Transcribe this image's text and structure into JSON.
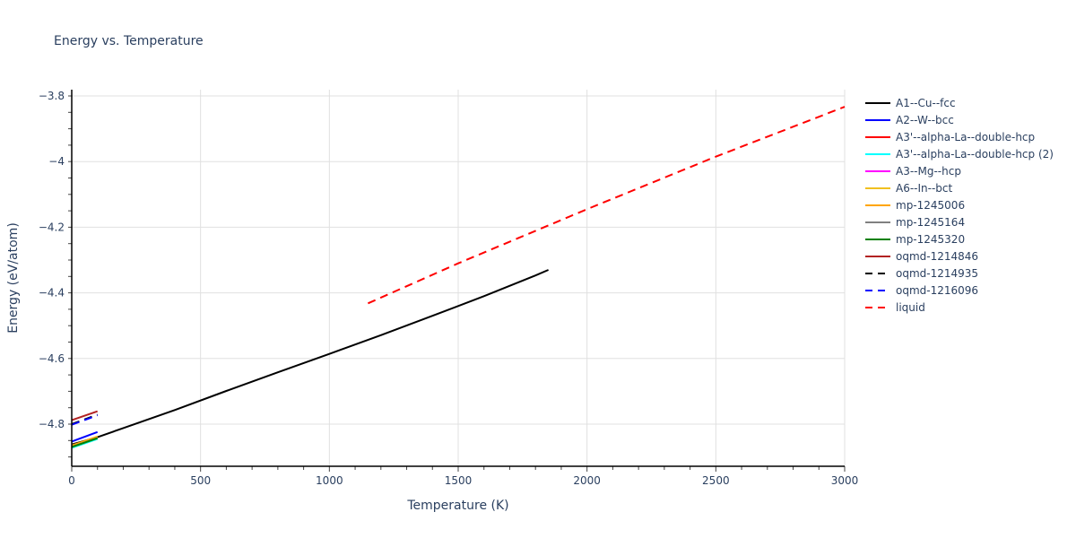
{
  "chart_data": {
    "type": "line",
    "title": "Energy vs. Temperature",
    "xlabel": "Temperature (K)",
    "ylabel": "Energy (eV/atom)",
    "xlim": [
      0,
      3000
    ],
    "ylim": [
      -4.928,
      -3.78
    ],
    "xticks": [
      0,
      500,
      1000,
      1500,
      2000,
      2500,
      3000
    ],
    "yticks": [
      -3.8,
      -4,
      -4.2,
      -4.4,
      -4.6,
      -4.8
    ],
    "ytick_labels": [
      "−3.8",
      "−4",
      "−4.2",
      "−4.4",
      "−4.6",
      "−4.8"
    ],
    "grid": true,
    "legend_position": "right",
    "series": [
      {
        "name": "A1--Cu--fcc",
        "color": "#000000",
        "dash": "solid",
        "x": [
          0,
          100,
          200,
          400,
          600,
          800,
          1000,
          1200,
          1400,
          1600,
          1800,
          1850
        ],
        "y": [
          -4.862,
          -4.84,
          -4.812,
          -4.757,
          -4.699,
          -4.642,
          -4.586,
          -4.529,
          -4.47,
          -4.41,
          -4.347,
          -4.33
        ]
      },
      {
        "name": "A2--W--bcc",
        "color": "#0000ff",
        "dash": "solid",
        "x": [
          0,
          100
        ],
        "y": [
          -4.853,
          -4.824
        ]
      },
      {
        "name": "A3'--alpha-La--double-hcp",
        "color": "#ff0000",
        "dash": "solid",
        "x": [
          0,
          100
        ],
        "y": [
          -4.866,
          -4.84
        ]
      },
      {
        "name": "A3'--alpha-La--double-hcp (2)",
        "color": "#00ffff",
        "dash": "solid",
        "x": [
          0,
          100
        ],
        "y": [
          -4.872,
          -4.845
        ]
      },
      {
        "name": "A3--Mg--hcp",
        "color": "#ff00ff",
        "dash": "solid",
        "x": [
          0,
          100
        ],
        "y": [
          -4.868,
          -4.841
        ]
      },
      {
        "name": "A6--In--bct",
        "color": "#f0c020",
        "dash": "solid",
        "x": [
          0,
          100
        ],
        "y": [
          -4.866,
          -4.839
        ]
      },
      {
        "name": "mp-1245006",
        "color": "#ffa500",
        "dash": "solid",
        "x": [
          0,
          100
        ],
        "y": [
          -4.865,
          -4.838
        ]
      },
      {
        "name": "mp-1245164",
        "color": "#808080",
        "dash": "solid",
        "x": [
          0,
          100
        ],
        "y": [
          -4.869,
          -4.842
        ]
      },
      {
        "name": "mp-1245320",
        "color": "#008000",
        "dash": "solid",
        "x": [
          0,
          100
        ],
        "y": [
          -4.87,
          -4.843
        ]
      },
      {
        "name": "oqmd-1214846",
        "color": "#b22222",
        "dash": "solid",
        "x": [
          0,
          100
        ],
        "y": [
          -4.788,
          -4.761
        ]
      },
      {
        "name": "oqmd-1214935",
        "color": "#000000",
        "dash": "dash",
        "x": [
          0,
          100
        ],
        "y": [
          -4.8,
          -4.771
        ]
      },
      {
        "name": "oqmd-1216096",
        "color": "#0000ff",
        "dash": "dash",
        "x": [
          0,
          100
        ],
        "y": [
          -4.802,
          -4.773
        ]
      },
      {
        "name": "liquid",
        "color": "#ff0000",
        "dash": "dash",
        "x": [
          1150,
          1500,
          2000,
          2500,
          3000
        ],
        "y": [
          -4.432,
          -4.31,
          -4.145,
          -3.985,
          -3.833
        ]
      }
    ]
  }
}
